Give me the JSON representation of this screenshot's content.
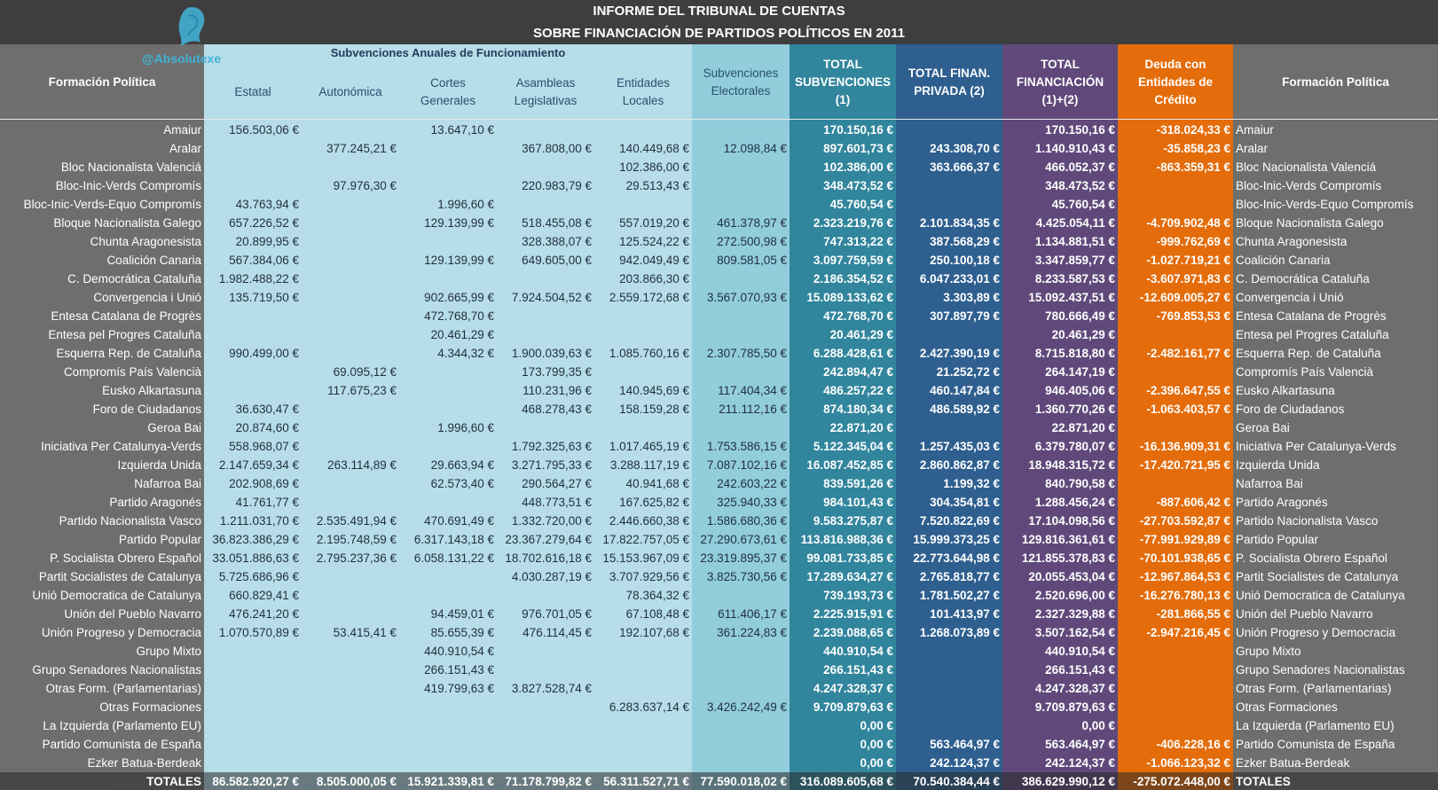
{
  "header": {
    "title_line1": "INFORME DEL TRIBUNAL DE CUENTAS",
    "title_line2": "SOBRE FINANCIACIÓN DE PARTIDOS POLÍTICOS EN 2011",
    "watermark": "@Absolutexe",
    "group_title": "Subvenciones Anuales de Funcionamiento"
  },
  "columns": [
    {
      "key": "name",
      "label": "Formación Política"
    },
    {
      "key": "estatal",
      "label": "Estatal"
    },
    {
      "key": "autonomica",
      "label": "Autonómica"
    },
    {
      "key": "cortes",
      "label": "Cortes Generales"
    },
    {
      "key": "asambleas",
      "label": "Asambleas Legislativas"
    },
    {
      "key": "locales",
      "label": "Entidades Locales"
    },
    {
      "key": "electorales",
      "label": "Subvenciones Electorales"
    },
    {
      "key": "total_sub",
      "label": "TOTAL SUBVENCIONES (1)"
    },
    {
      "key": "privada",
      "label": "TOTAL FINAN. PRIVADA (2)"
    },
    {
      "key": "total_fin",
      "label": "TOTAL FINANCIACIÓN (1)+(2)"
    },
    {
      "key": "deuda",
      "label": "Deuda con Entidades de Crédito"
    },
    {
      "key": "name2",
      "label": "Formación Política"
    }
  ],
  "colors": {
    "light": "#b7dde8",
    "electorales": "#92cddc",
    "total_sub": "#31859c",
    "privada": "#2e5f8f",
    "total_fin": "#60497a",
    "deuda": "#e46c0a",
    "gray": "#6e6e6e"
  },
  "rows": [
    [
      "Amaiur",
      "156.503,06 €",
      "",
      "13.647,10 €",
      "",
      "",
      "",
      "170.150,16 €",
      "",
      "170.150,16 €",
      "-318.024,33 €"
    ],
    [
      "Aralar",
      "",
      "377.245,21 €",
      "",
      "367.808,00 €",
      "140.449,68 €",
      "12.098,84 €",
      "897.601,73 €",
      "243.308,70 €",
      "1.140.910,43 €",
      "-35.858,23 €"
    ],
    [
      "Bloc Nacionalista Valenciá",
      "",
      "",
      "",
      "",
      "102.386,00 €",
      "",
      "102.386,00 €",
      "363.666,37 €",
      "466.052,37 €",
      "-863.359,31 €"
    ],
    [
      "Bloc-Inic-Verds Compromís",
      "",
      "97.976,30 €",
      "",
      "220.983,79 €",
      "29.513,43 €",
      "",
      "348.473,52 €",
      "",
      "348.473,52 €",
      ""
    ],
    [
      "Bloc-Inic-Verds-Equo Compromís",
      "43.763,94 €",
      "",
      "1.996,60 €",
      "",
      "",
      "",
      "45.760,54 €",
      "",
      "45.760,54 €",
      ""
    ],
    [
      "Bloque Nacionalista Galego",
      "657.226,52 €",
      "",
      "129.139,99 €",
      "518.455,08 €",
      "557.019,20 €",
      "461.378,97 €",
      "2.323.219,76 €",
      "2.101.834,35 €",
      "4.425.054,11 €",
      "-4.709.902,48 €"
    ],
    [
      "Chunta Aragonesista",
      "20.899,95 €",
      "",
      "",
      "328.388,07 €",
      "125.524,22 €",
      "272.500,98 €",
      "747.313,22 €",
      "387.568,29 €",
      "1.134.881,51 €",
      "-999.762,69 €"
    ],
    [
      "Coalición Canaria",
      "567.384,06 €",
      "",
      "129.139,99 €",
      "649.605,00 €",
      "942.049,49 €",
      "809.581,05 €",
      "3.097.759,59 €",
      "250.100,18 €",
      "3.347.859,77 €",
      "-1.027.719,21 €"
    ],
    [
      "C. Democrática Cataluña",
      "1.982.488,22 €",
      "",
      "",
      "",
      "203.866,30 €",
      "",
      "2.186.354,52 €",
      "6.047.233,01 €",
      "8.233.587,53 €",
      "-3.607.971,83 €"
    ],
    [
      "Convergencia i Unió",
      "135.719,50 €",
      "",
      "902.665,99 €",
      "7.924.504,52 €",
      "2.559.172,68 €",
      "3.567.070,93 €",
      "15.089.133,62 €",
      "3.303,89 €",
      "15.092.437,51 €",
      "-12.609.005,27 €"
    ],
    [
      "Entesa Catalana de Progrès",
      "",
      "",
      "472.768,70 €",
      "",
      "",
      "",
      "472.768,70 €",
      "307.897,79 €",
      "780.666,49 €",
      "-769.853,53 €"
    ],
    [
      "Entesa pel Progres Cataluña",
      "",
      "",
      "20.461,29 €",
      "",
      "",
      "",
      "20.461,29 €",
      "",
      "20.461,29 €",
      ""
    ],
    [
      "Esquerra Rep. de Cataluña",
      "990.499,00 €",
      "",
      "4.344,32 €",
      "1.900.039,63 €",
      "1.085.760,16 €",
      "2.307.785,50 €",
      "6.288.428,61 €",
      "2.427.390,19 €",
      "8.715.818,80 €",
      "-2.482.161,77 €"
    ],
    [
      "Compromís País Valencià",
      "",
      "69.095,12 €",
      "",
      "173.799,35 €",
      "",
      "",
      "242.894,47 €",
      "21.252,72 €",
      "264.147,19 €",
      ""
    ],
    [
      "Eusko Alkartasuna",
      "",
      "117.675,23 €",
      "",
      "110.231,96 €",
      "140.945,69 €",
      "117.404,34 €",
      "486.257,22 €",
      "460.147,84 €",
      "946.405,06 €",
      "-2.396.647,55 €"
    ],
    [
      "Foro de Ciudadanos",
      "36.630,47 €",
      "",
      "",
      "468.278,43 €",
      "158.159,28 €",
      "211.112,16 €",
      "874.180,34 €",
      "486.589,92 €",
      "1.360.770,26 €",
      "-1.063.403,57 €"
    ],
    [
      "Geroa Bai",
      "20.874,60 €",
      "",
      "1.996,60 €",
      "",
      "",
      "",
      "22.871,20 €",
      "",
      "22.871,20 €",
      ""
    ],
    [
      "Iniciativa Per Catalunya-Verds",
      "558.968,07 €",
      "",
      "",
      "1.792.325,63 €",
      "1.017.465,19 €",
      "1.753.586,15 €",
      "5.122.345,04 €",
      "1.257.435,03 €",
      "6.379.780,07 €",
      "-16.136.909,31 €"
    ],
    [
      "Izquierda Unida",
      "2.147.659,34 €",
      "263.114,89 €",
      "29.663,94 €",
      "3.271.795,33 €",
      "3.288.117,19 €",
      "7.087.102,16 €",
      "16.087.452,85 €",
      "2.860.862,87 €",
      "18.948.315,72 €",
      "-17.420.721,95 €"
    ],
    [
      "Nafarroa Bai",
      "202.908,69 €",
      "",
      "62.573,40 €",
      "290.564,27 €",
      "40.941,68 €",
      "242.603,22 €",
      "839.591,26 €",
      "1.199,32 €",
      "840.790,58 €",
      ""
    ],
    [
      "Partido Aragonés",
      "41.761,77 €",
      "",
      "",
      "448.773,51 €",
      "167.625,82 €",
      "325.940,33 €",
      "984.101,43 €",
      "304.354,81 €",
      "1.288.456,24 €",
      "-887.606,42 €"
    ],
    [
      "Partido Nacionalista Vasco",
      "1.211.031,70 €",
      "2.535.491,94 €",
      "470.691,49 €",
      "1.332.720,00 €",
      "2.446.660,38 €",
      "1.586.680,36 €",
      "9.583.275,87 €",
      "7.520.822,69 €",
      "17.104.098,56 €",
      "-27.703.592,87 €"
    ],
    [
      "Partido Popular",
      "36.823.386,29 €",
      "2.195.748,59 €",
      "6.317.143,18 €",
      "23.367.279,64 €",
      "17.822.757,05 €",
      "27.290.673,61 €",
      "113.816.988,36 €",
      "15.999.373,25 €",
      "129.816.361,61 €",
      "-77.991.929,89 €"
    ],
    [
      "P. Socialista Obrero Español",
      "33.051.886,63 €",
      "2.795.237,36 €",
      "6.058.131,22 €",
      "18.702.616,18 €",
      "15.153.967,09 €",
      "23.319.895,37 €",
      "99.081.733,85 €",
      "22.773.644,98 €",
      "121.855.378,83 €",
      "-70.101.938,65 €"
    ],
    [
      "Partit  Socialistes de Catalunya",
      "5.725.686,96 €",
      "",
      "",
      "4.030.287,19 €",
      "3.707.929,56 €",
      "3.825.730,56 €",
      "17.289.634,27 €",
      "2.765.818,77 €",
      "20.055.453,04 €",
      "-12.967.864,53 €"
    ],
    [
      "Unió Democratica de Catalunya",
      "660.829,41 €",
      "",
      "",
      "",
      "78.364,32 €",
      "",
      "739.193,73 €",
      "1.781.502,27 €",
      "2.520.696,00 €",
      "-16.276.780,13 €"
    ],
    [
      "Unión del Pueblo Navarro",
      "476.241,20 €",
      "",
      "94.459,01 €",
      "976.701,05 €",
      "67.108,48 €",
      "611.406,17 €",
      "2.225.915,91 €",
      "101.413,97 €",
      "2.327.329,88 €",
      "-281.866,55 €"
    ],
    [
      "Unión Progreso y Democracia",
      "1.070.570,89 €",
      "53.415,41 €",
      "85.655,39 €",
      "476.114,45 €",
      "192.107,68 €",
      "361.224,83 €",
      "2.239.088,65 €",
      "1.268.073,89 €",
      "3.507.162,54 €",
      "-2.947.216,45 €"
    ],
    [
      "Grupo Mixto",
      "",
      "",
      "440.910,54 €",
      "",
      "",
      "",
      "440.910,54 €",
      "",
      "440.910,54 €",
      ""
    ],
    [
      "Grupo Senadores Nacionalistas",
      "",
      "",
      "266.151,43 €",
      "",
      "",
      "",
      "266.151,43 €",
      "",
      "266.151,43 €",
      ""
    ],
    [
      "Otras Form. (Parlamentarias)",
      "",
      "",
      "419.799,63 €",
      "3.827.528,74 €",
      "",
      "",
      "4.247.328,37 €",
      "",
      "4.247.328,37 €",
      ""
    ],
    [
      "Otras Formaciones",
      "",
      "",
      "",
      "",
      "6.283.637,14 €",
      "3.426.242,49 €",
      "9.709.879,63 €",
      "",
      "9.709.879,63 €",
      ""
    ],
    [
      "La Izquierda (Parlamento EU)",
      "",
      "",
      "",
      "",
      "",
      "",
      "0,00 €",
      "",
      "0,00 €",
      ""
    ],
    [
      "Partido Comunista de España",
      "",
      "",
      "",
      "",
      "",
      "",
      "0,00 €",
      "563.464,97 €",
      "563.464,97 €",
      "-406.228,16 €"
    ],
    [
      "Ezker Batua-Berdeak",
      "",
      "",
      "",
      "",
      "",
      "",
      "0,00 €",
      "242.124,37 €",
      "242.124,37 €",
      "-1.066.123,32 €"
    ]
  ],
  "totals": [
    "TOTALES",
    "86.582.920,27 €",
    "8.505.000,05 €",
    "15.921.339,81 €",
    "71.178.799,82 €",
    "56.311.527,71 €",
    "77.590.018,02 €",
    "316.089.605,68 €",
    "70.540.384,44 €",
    "386.629.990,12 €",
    "-275.072.448,00 €"
  ]
}
